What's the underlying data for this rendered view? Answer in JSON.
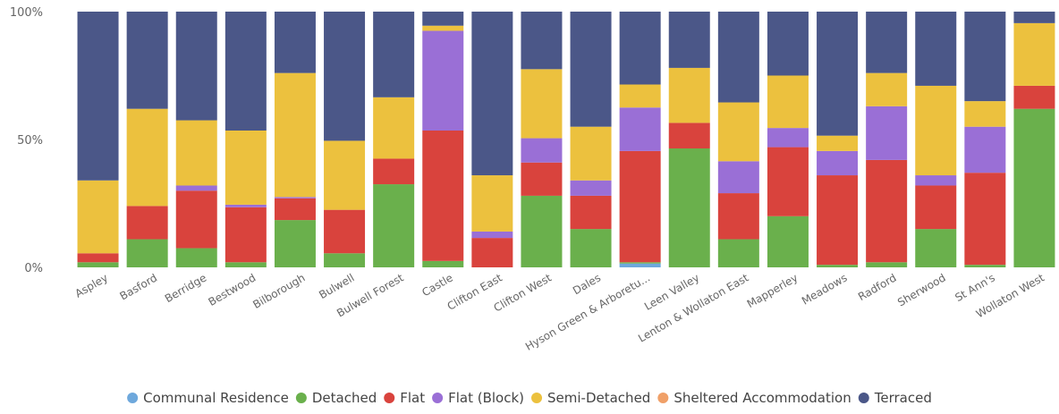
{
  "chart_data": {
    "type": "bar",
    "stacked": true,
    "percent_stacked": true,
    "categories": [
      "Aspley",
      "Basford",
      "Berridge",
      "Bestwood",
      "Bilborough",
      "Bulwell",
      "Bulwell Forest",
      "Castle",
      "Clifton East",
      "Clifton West",
      "Dales",
      "Hyson Green & Arboretu...",
      "Leen Valley",
      "Lenton & Wollaton East",
      "Mapperley",
      "Meadows",
      "Radford",
      "Sherwood",
      "St Ann's",
      "Wollaton West"
    ],
    "series": [
      {
        "name": "Communal Residence",
        "color": "#6ea8dc",
        "values": [
          0,
          0,
          0,
          0,
          0,
          0,
          0,
          0,
          0,
          0,
          0,
          1.5,
          0,
          0,
          0,
          0,
          0,
          0,
          0,
          0
        ]
      },
      {
        "name": "Detached",
        "color": "#6ab04c",
        "values": [
          2,
          11,
          7.5,
          2,
          18.5,
          5.5,
          32.5,
          2.5,
          0,
          28,
          15,
          0.5,
          46.5,
          11,
          20,
          1,
          2,
          15,
          1,
          62
        ]
      },
      {
        "name": "Flat",
        "color": "#d9433d",
        "values": [
          3.5,
          13,
          22.5,
          21.5,
          8.5,
          17,
          10,
          51,
          11.5,
          13,
          13,
          43.5,
          10,
          18,
          27,
          35,
          40,
          17,
          36,
          9
        ]
      },
      {
        "name": "Flat (Block)",
        "color": "#9a6fd6",
        "values": [
          0,
          0,
          2,
          1,
          0.5,
          0,
          0,
          39,
          2.5,
          9.5,
          6,
          17,
          0,
          12.5,
          7.5,
          9.5,
          21,
          4,
          18,
          0
        ]
      },
      {
        "name": "Semi-Detached",
        "color": "#ecc13e",
        "values": [
          28.5,
          38,
          25.5,
          29,
          48.5,
          27,
          24,
          2,
          22,
          27,
          21,
          9,
          21.5,
          23,
          20.5,
          6,
          13,
          35,
          10,
          24.5
        ]
      },
      {
        "name": "Sheltered Accommodation",
        "color": "#f0a068",
        "values": [
          0,
          0,
          0,
          0,
          0,
          0,
          0,
          0,
          0,
          0,
          0,
          0,
          0,
          0,
          0,
          0,
          0,
          0,
          0,
          0
        ]
      },
      {
        "name": "Terraced",
        "color": "#4b5788",
        "values": [
          66,
          38,
          42.5,
          46.5,
          24,
          50.5,
          33.5,
          5.5,
          64,
          22.5,
          45,
          28.5,
          22,
          35.5,
          25,
          48.5,
          24,
          29,
          35,
          4.5
        ]
      }
    ],
    "ylim": [
      0,
      100
    ],
    "yticks": [
      {
        "value": 0,
        "label": "0%"
      },
      {
        "value": 50,
        "label": "50%"
      },
      {
        "value": 100,
        "label": "100%"
      }
    ],
    "legend_position": "bottom",
    "grid": false
  }
}
